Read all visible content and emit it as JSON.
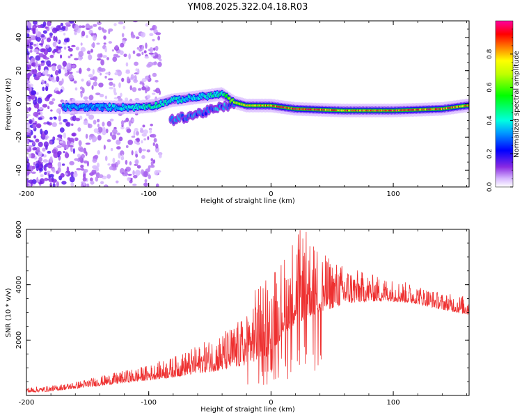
{
  "title": "YM08.2025.322.04.18.R03",
  "colors": {
    "snr_line": "#ee3030",
    "axis": "#000000",
    "background": "#ffffff"
  },
  "chart_data": [
    {
      "type": "heatmap",
      "name": "spectrogram",
      "xlabel": "Height of straight line (km)",
      "ylabel": "Frequency (Hz)",
      "xlim": [
        -200,
        162
      ],
      "ylim": [
        -50,
        50
      ],
      "xticks": [
        -200,
        -100,
        0,
        100
      ],
      "xtick_labels": [
        "-200",
        "-100",
        "0",
        "100"
      ],
      "yticks": [
        -40,
        -20,
        0,
        20,
        40
      ],
      "ytick_labels": [
        "-40",
        "-20",
        "0",
        "20",
        "40"
      ],
      "colorbar": {
        "label": "Normalized spectral amplitude",
        "range": [
          0,
          1
        ],
        "ticks": [
          0,
          0.2,
          0.4,
          0.6,
          0.8
        ],
        "tick_labels": [
          "0.0",
          "0.2",
          "0.4",
          "0.6",
          "0.8"
        ]
      },
      "ridge": {
        "description_points_x_km": [
          -165,
          -140,
          -110,
          -95,
          -82,
          -60,
          -40,
          -30,
          -20,
          0,
          20,
          60,
          100,
          140,
          160
        ],
        "center_freq_hz": [
          -2,
          -2,
          -2,
          -1,
          2,
          4,
          6,
          1,
          -1,
          -1,
          -3,
          -4,
          -4,
          -3,
          -1
        ],
        "amplitude": [
          0.35,
          0.35,
          0.4,
          0.45,
          0.4,
          0.4,
          0.45,
          0.7,
          0.75,
          0.85,
          0.95,
          0.85,
          0.9,
          0.9,
          0.85
        ]
      },
      "lower_branch": {
        "x_km": [
          -82,
          -60,
          -40,
          -30
        ],
        "center_freq_hz": [
          -10,
          -6,
          -2,
          0
        ]
      }
    },
    {
      "type": "line",
      "name": "snr",
      "xlabel": "Height of straight line (km)",
      "ylabel": "SNR (10 * v/v)",
      "xlim": [
        -200,
        162
      ],
      "ylim": [
        0,
        6000
      ],
      "xticks": [
        -200,
        -100,
        0,
        100
      ],
      "xtick_labels": [
        "-200",
        "-100",
        "0",
        "100"
      ],
      "yticks": [
        2000,
        4000,
        6000
      ],
      "ytick_labels": [
        "2000",
        "4000",
        "6000"
      ],
      "envelope": {
        "x": [
          -200,
          -180,
          -160,
          -140,
          -120,
          -100,
          -80,
          -60,
          -40,
          -20,
          -10,
          0,
          10,
          20,
          30,
          40,
          60,
          80,
          100,
          120,
          140,
          162
        ],
        "baseline": [
          100,
          150,
          250,
          350,
          450,
          550,
          650,
          800,
          900,
          1100,
          1300,
          1500,
          2200,
          2600,
          2800,
          3000,
          3300,
          3400,
          3400,
          3300,
          3100,
          2900
        ],
        "peak": [
          300,
          350,
          500,
          700,
          900,
          1100,
          1400,
          1800,
          2300,
          2900,
          4300,
          4700,
          5000,
          6000,
          6000,
          5200,
          4700,
          4400,
          4200,
          4000,
          3700,
          3600
        ]
      }
    }
  ]
}
